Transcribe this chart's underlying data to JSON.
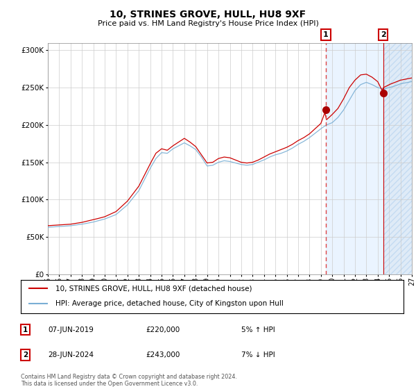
{
  "title": "10, STRINES GROVE, HULL, HU8 9XF",
  "subtitle": "Price paid vs. HM Land Registry's House Price Index (HPI)",
  "ylim": [
    0,
    310000
  ],
  "yticks": [
    0,
    50000,
    100000,
    150000,
    200000,
    250000,
    300000
  ],
  "ytick_labels": [
    "£0",
    "£50K",
    "£100K",
    "£150K",
    "£200K",
    "£250K",
    "£300K"
  ],
  "sale1_date": "07-JUN-2019",
  "sale1_price": 220000,
  "sale1_pct": "5% ↑ HPI",
  "sale2_date": "28-JUN-2024",
  "sale2_price": 243000,
  "sale2_pct": "7% ↓ HPI",
  "legend_label1": "10, STRINES GROVE, HULL, HU8 9XF (detached house)",
  "legend_label2": "HPI: Average price, detached house, City of Kingston upon Hull",
  "footer": "Contains HM Land Registry data © Crown copyright and database right 2024.\nThis data is licensed under the Open Government Licence v3.0.",
  "line_color_red": "#cc0000",
  "line_color_blue": "#7aafd4",
  "fill_color_blue": "#ddeeff",
  "hatch_color": "#c0d8f0",
  "vline1_color": "#dd4444",
  "vline2_color": "#cc0000",
  "marker_color": "#aa0000",
  "marker1_x": 2019.44,
  "marker2_x": 2024.49,
  "marker1_y": 220000,
  "marker2_y": 243000,
  "xmin": 1995.0,
  "xmax": 2027.0,
  "background_color": "#ffffff",
  "grid_color": "#cccccc"
}
